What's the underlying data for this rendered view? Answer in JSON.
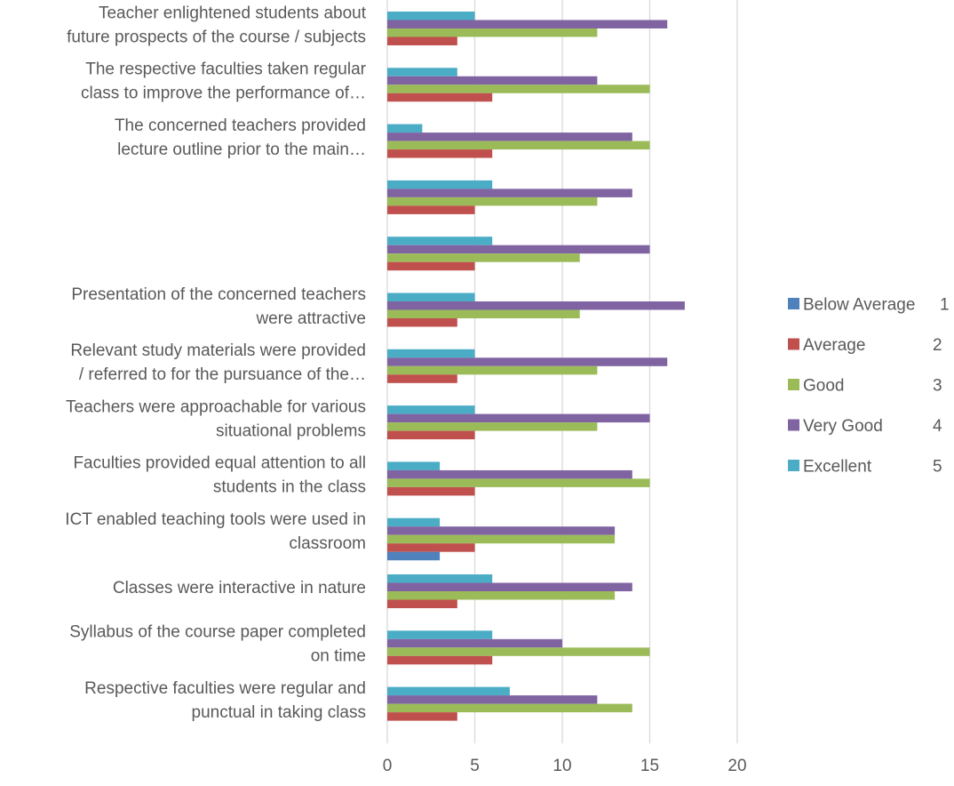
{
  "chart_data": {
    "type": "bar",
    "orientation": "horizontal",
    "title": "",
    "xlabel": "",
    "ylabel": "",
    "xlim": [
      0,
      20
    ],
    "x_ticks": [
      0,
      5,
      10,
      15,
      20
    ],
    "grid": "vertical",
    "legend_position": "right",
    "categories": [
      [
        "Teacher enlightened students about",
        "future prospects of the course / subjects"
      ],
      [
        "The respective faculties taken regular",
        "class to improve the performance of…"
      ],
      [
        "The concerned teachers provided",
        "lecture outline prior to the main…"
      ],
      [],
      [],
      [
        "Presentation of the concerned teachers",
        "were attractive"
      ],
      [
        "Relevant study materials were provided",
        "/ referred to for the pursuance of the…"
      ],
      [
        "Teachers were approachable for various",
        "situational problems"
      ],
      [
        "Faculties provided equal attention to all",
        "students in the class"
      ],
      [
        "ICT enabled teaching tools were used in",
        "classroom"
      ],
      [
        "Classes were interactive in nature"
      ],
      [
        "Syllabus of the course paper  completed",
        "on time"
      ],
      [
        "Respective faculties were regular and",
        "punctual in taking class"
      ]
    ],
    "series": [
      {
        "name": "Excellent",
        "rating": "5",
        "color": "#4BACC6",
        "values": [
          5,
          4,
          2,
          6,
          6,
          5,
          5,
          5,
          3,
          3,
          6,
          6,
          7
        ]
      },
      {
        "name": "Very Good",
        "rating": "4",
        "color": "#8064A2",
        "values": [
          16,
          12,
          14,
          14,
          15,
          17,
          16,
          15,
          14,
          13,
          14,
          10,
          12
        ]
      },
      {
        "name": "Good",
        "rating": "3",
        "color": "#9BBB59",
        "values": [
          12,
          15,
          15,
          12,
          11,
          11,
          12,
          12,
          15,
          13,
          13,
          15,
          14
        ]
      },
      {
        "name": "Average",
        "rating": "2",
        "color": "#C0504D",
        "values": [
          4,
          6,
          6,
          5,
          5,
          4,
          4,
          5,
          5,
          5,
          4,
          6,
          4
        ]
      },
      {
        "name": "Below Average",
        "rating": "1",
        "color": "#4F81BD",
        "values": [
          0,
          0,
          0,
          0,
          0,
          0,
          0,
          0,
          0,
          3,
          0,
          0,
          0
        ]
      }
    ]
  }
}
